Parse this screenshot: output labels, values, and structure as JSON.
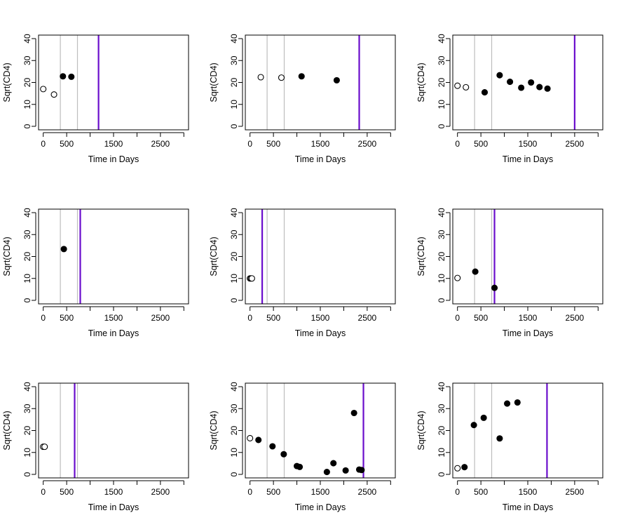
{
  "chart_data": [
    {
      "type": "scatter",
      "xlabel": "Time in Days",
      "ylabel": "Sqrt(CD4)",
      "xlim": [
        -100,
        3100
      ],
      "ylim": [
        -1.6,
        41.6
      ],
      "xticks": [
        0,
        500,
        1500,
        2500
      ],
      "yticks": [
        0,
        10,
        20,
        30,
        40
      ],
      "gray_lines": [
        365,
        730
      ],
      "event_line": 1180,
      "points": [
        {
          "x": 0,
          "y": 17,
          "filled": false
        },
        {
          "x": 230,
          "y": 14.5,
          "filled": false
        },
        {
          "x": 420,
          "y": 22.8,
          "filled": true
        },
        {
          "x": 600,
          "y": 22.6,
          "filled": true
        }
      ]
    },
    {
      "type": "scatter",
      "xlabel": "Time in Days",
      "ylabel": "Sqrt(CD4)",
      "xlim": [
        -100,
        3100
      ],
      "ylim": [
        -1.6,
        41.6
      ],
      "xticks": [
        0,
        500,
        1500,
        2500
      ],
      "yticks": [
        0,
        10,
        20,
        30,
        40
      ],
      "gray_lines": [
        365,
        730
      ],
      "event_line": 2330,
      "points": [
        {
          "x": 230,
          "y": 22.4,
          "filled": false
        },
        {
          "x": 670,
          "y": 22.2,
          "filled": false
        },
        {
          "x": 1100,
          "y": 22.8,
          "filled": true
        },
        {
          "x": 1850,
          "y": 21,
          "filled": true
        }
      ]
    },
    {
      "type": "scatter",
      "xlabel": "Time in Days",
      "ylabel": "Sqrt(CD4)",
      "xlim": [
        -100,
        3100
      ],
      "ylim": [
        -1.6,
        41.6
      ],
      "xticks": [
        0,
        500,
        1500,
        2500
      ],
      "yticks": [
        0,
        10,
        20,
        30,
        40
      ],
      "gray_lines": [
        365,
        730
      ],
      "event_line": 2500,
      "points": [
        {
          "x": 0,
          "y": 18.5,
          "filled": false
        },
        {
          "x": 180,
          "y": 17.8,
          "filled": false
        },
        {
          "x": 580,
          "y": 15.5,
          "filled": true
        },
        {
          "x": 900,
          "y": 23.3,
          "filled": true
        },
        {
          "x": 1120,
          "y": 20.3,
          "filled": true
        },
        {
          "x": 1360,
          "y": 17.6,
          "filled": true
        },
        {
          "x": 1570,
          "y": 20,
          "filled": true
        },
        {
          "x": 1750,
          "y": 17.9,
          "filled": true
        },
        {
          "x": 1920,
          "y": 17.2,
          "filled": true
        }
      ]
    },
    {
      "type": "scatter",
      "xlabel": "Time in Days",
      "ylabel": "Sqrt(CD4)",
      "xlim": [
        -100,
        3100
      ],
      "ylim": [
        -1.6,
        41.6
      ],
      "xticks": [
        0,
        500,
        1500,
        2500
      ],
      "yticks": [
        0,
        10,
        20,
        30,
        40
      ],
      "gray_lines": [
        365,
        730
      ],
      "event_line": 790,
      "points": [
        {
          "x": 440,
          "y": 23.4,
          "filled": true
        }
      ]
    },
    {
      "type": "scatter",
      "xlabel": "Time in Days",
      "ylabel": "Sqrt(CD4)",
      "xlim": [
        -100,
        3100
      ],
      "ylim": [
        -1.6,
        41.6
      ],
      "xticks": [
        0,
        500,
        1500,
        2500
      ],
      "yticks": [
        0,
        10,
        20,
        30,
        40
      ],
      "gray_lines": [
        365,
        730
      ],
      "event_line": 260,
      "points": [
        {
          "x": 0,
          "y": 10,
          "filled": false
        },
        {
          "x": 20,
          "y": 10,
          "filled": false
        },
        {
          "x": 40,
          "y": 10,
          "filled": false
        }
      ]
    },
    {
      "type": "scatter",
      "xlabel": "Time in Days",
      "ylabel": "Sqrt(CD4)",
      "xlim": [
        -100,
        3100
      ],
      "ylim": [
        -1.6,
        41.6
      ],
      "xticks": [
        0,
        500,
        1500,
        2500
      ],
      "yticks": [
        0,
        10,
        20,
        30,
        40
      ],
      "gray_lines": [
        365,
        730
      ],
      "event_line": 790,
      "points": [
        {
          "x": 0,
          "y": 10.2,
          "filled": false
        },
        {
          "x": 380,
          "y": 13.1,
          "filled": true
        },
        {
          "x": 790,
          "y": 5.7,
          "filled": true
        }
      ]
    },
    {
      "type": "scatter",
      "xlabel": "Time in Days",
      "ylabel": "Sqrt(CD4)",
      "xlim": [
        -100,
        3100
      ],
      "ylim": [
        -1.6,
        41.6
      ],
      "xticks": [
        0,
        500,
        1500,
        2500
      ],
      "yticks": [
        0,
        10,
        20,
        30,
        40
      ],
      "gray_lines": [
        365,
        730
      ],
      "event_line": 670,
      "points": [
        {
          "x": 0,
          "y": 12.6,
          "filled": false
        },
        {
          "x": 30,
          "y": 12.6,
          "filled": false
        }
      ]
    },
    {
      "type": "scatter",
      "xlabel": "Time in Days",
      "ylabel": "Sqrt(CD4)",
      "xlim": [
        -100,
        3100
      ],
      "ylim": [
        -1.6,
        41.6
      ],
      "xticks": [
        0,
        500,
        1500,
        2500
      ],
      "yticks": [
        0,
        10,
        20,
        30,
        40
      ],
      "gray_lines": [
        365,
        730
      ],
      "event_line": 2420,
      "points": [
        {
          "x": 0,
          "y": 16.5,
          "filled": false
        },
        {
          "x": 180,
          "y": 15.7,
          "filled": true
        },
        {
          "x": 480,
          "y": 12.8,
          "filled": true
        },
        {
          "x": 720,
          "y": 9.2,
          "filled": true
        },
        {
          "x": 1000,
          "y": 3.8,
          "filled": true
        },
        {
          "x": 1060,
          "y": 3.4,
          "filled": true
        },
        {
          "x": 1640,
          "y": 1.1,
          "filled": true
        },
        {
          "x": 1780,
          "y": 5.1,
          "filled": true
        },
        {
          "x": 2040,
          "y": 1.8,
          "filled": true
        },
        {
          "x": 2220,
          "y": 28,
          "filled": true
        },
        {
          "x": 2330,
          "y": 2.2,
          "filled": true
        },
        {
          "x": 2380,
          "y": 2,
          "filled": true
        }
      ]
    },
    {
      "type": "scatter",
      "xlabel": "Time in Days",
      "ylabel": "Sqrt(CD4)",
      "xlim": [
        -100,
        3100
      ],
      "ylim": [
        -1.6,
        41.6
      ],
      "xticks": [
        0,
        500,
        1500,
        2500
      ],
      "yticks": [
        0,
        10,
        20,
        30,
        40
      ],
      "gray_lines": [
        365,
        730
      ],
      "event_line": 1910,
      "points": [
        {
          "x": 0,
          "y": 2.8,
          "filled": false
        },
        {
          "x": 150,
          "y": 3.3,
          "filled": true
        },
        {
          "x": 350,
          "y": 22.5,
          "filled": true
        },
        {
          "x": 560,
          "y": 25.8,
          "filled": true
        },
        {
          "x": 900,
          "y": 16.4,
          "filled": true
        },
        {
          "x": 1060,
          "y": 32.3,
          "filled": true
        },
        {
          "x": 1280,
          "y": 32.8,
          "filled": true
        }
      ]
    }
  ]
}
